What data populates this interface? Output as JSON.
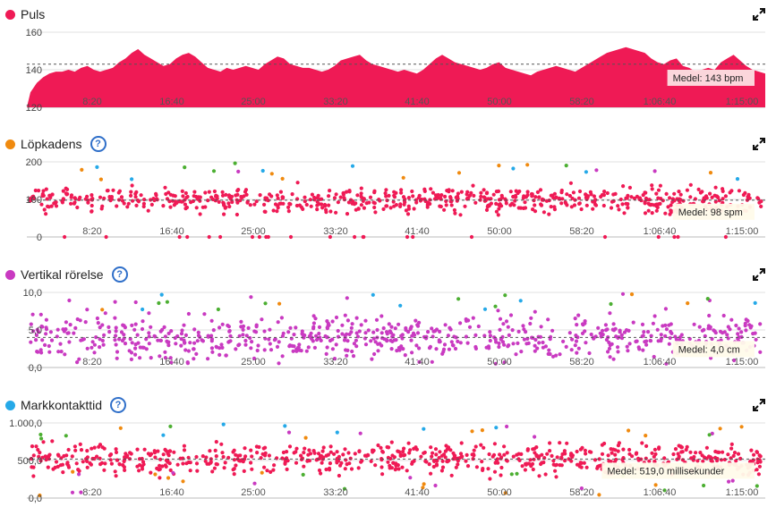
{
  "colors": {
    "pulse": "#ef1a55",
    "cadence_dot": "#f08a0f",
    "vertical_dot": "#c93ac1",
    "gct_dot": "#25a9e8",
    "help": "#2f6fc9",
    "purple": "#c93ac1",
    "blue": "#25a9e8",
    "green": "#4caf32",
    "orange": "#f08a0f"
  },
  "x_ticks": [
    "8:20",
    "16:40",
    "25:00",
    "33:20",
    "41:40",
    "50:00",
    "58:20",
    "1:06:40",
    "1:15:00"
  ],
  "panels": [
    {
      "id": "pulse",
      "title": "Puls",
      "has_help": false,
      "y_ticks": [
        "160",
        "140",
        "120"
      ],
      "average_label": "Medel: 143 bpm",
      "chart_data": {
        "type": "area",
        "x_unit": "seconds",
        "ylim": [
          120,
          160
        ],
        "average": 143,
        "series": [
          {
            "values": [
              128,
              133,
              136,
              138,
              139,
              139,
              140,
              139,
              141,
              142,
              140,
              139,
              140,
              141,
              144,
              146,
              149,
              151,
              148,
              146,
              144,
              142,
              143,
              146,
              148,
              149,
              147,
              144,
              141,
              140,
              139,
              141,
              140,
              141,
              142,
              141,
              140,
              143,
              145,
              147,
              146,
              143,
              142,
              141,
              141,
              140,
              139,
              140,
              142,
              145,
              146,
              147,
              148,
              145,
              143,
              142,
              141,
              140,
              139,
              140,
              139,
              138,
              140,
              143,
              146,
              148,
              146,
              144,
              143,
              142,
              141,
              140,
              141,
              143,
              144,
              141,
              140,
              139,
              138,
              137,
              139,
              140,
              141,
              142,
              141,
              140,
              139,
              141,
              143,
              145,
              147,
              149,
              150,
              151,
              152,
              151,
              150,
              149,
              146,
              144,
              143,
              145,
              146,
              142,
              141,
              139,
              140,
              141,
              140,
              144,
              146,
              148,
              145,
              142,
              140,
              139,
              138
            ]
          }
        ]
      }
    },
    {
      "id": "cadence",
      "title": "Löpkadens",
      "has_help": true,
      "y_ticks": [
        "200",
        "100",
        "0"
      ],
      "average_label": "Medel: 98 spm",
      "chart_data": {
        "type": "scatter",
        "ylim": [
          0,
          200
        ],
        "average": 98,
        "typical_range": [
          70,
          130
        ]
      }
    },
    {
      "id": "vertical",
      "title": "Vertikal rörelse",
      "has_help": true,
      "y_ticks": [
        "10,0",
        "5,0",
        "0,0"
      ],
      "average_label": "Medel: 4,0 cm",
      "chart_data": {
        "type": "scatter",
        "ylim": [
          0,
          10
        ],
        "average": 4.0,
        "typical_range": [
          1.5,
          6.5
        ]
      }
    },
    {
      "id": "gct",
      "title": "Markkontakttid",
      "has_help": true,
      "y_ticks": [
        "1.000,0",
        "500,0",
        "0,0"
      ],
      "average_label": "Medel: 519,0 millisekunder",
      "chart_data": {
        "type": "scatter",
        "ylim": [
          0,
          1000
        ],
        "average": 519,
        "typical_range": [
          350,
          700
        ]
      }
    }
  ]
}
